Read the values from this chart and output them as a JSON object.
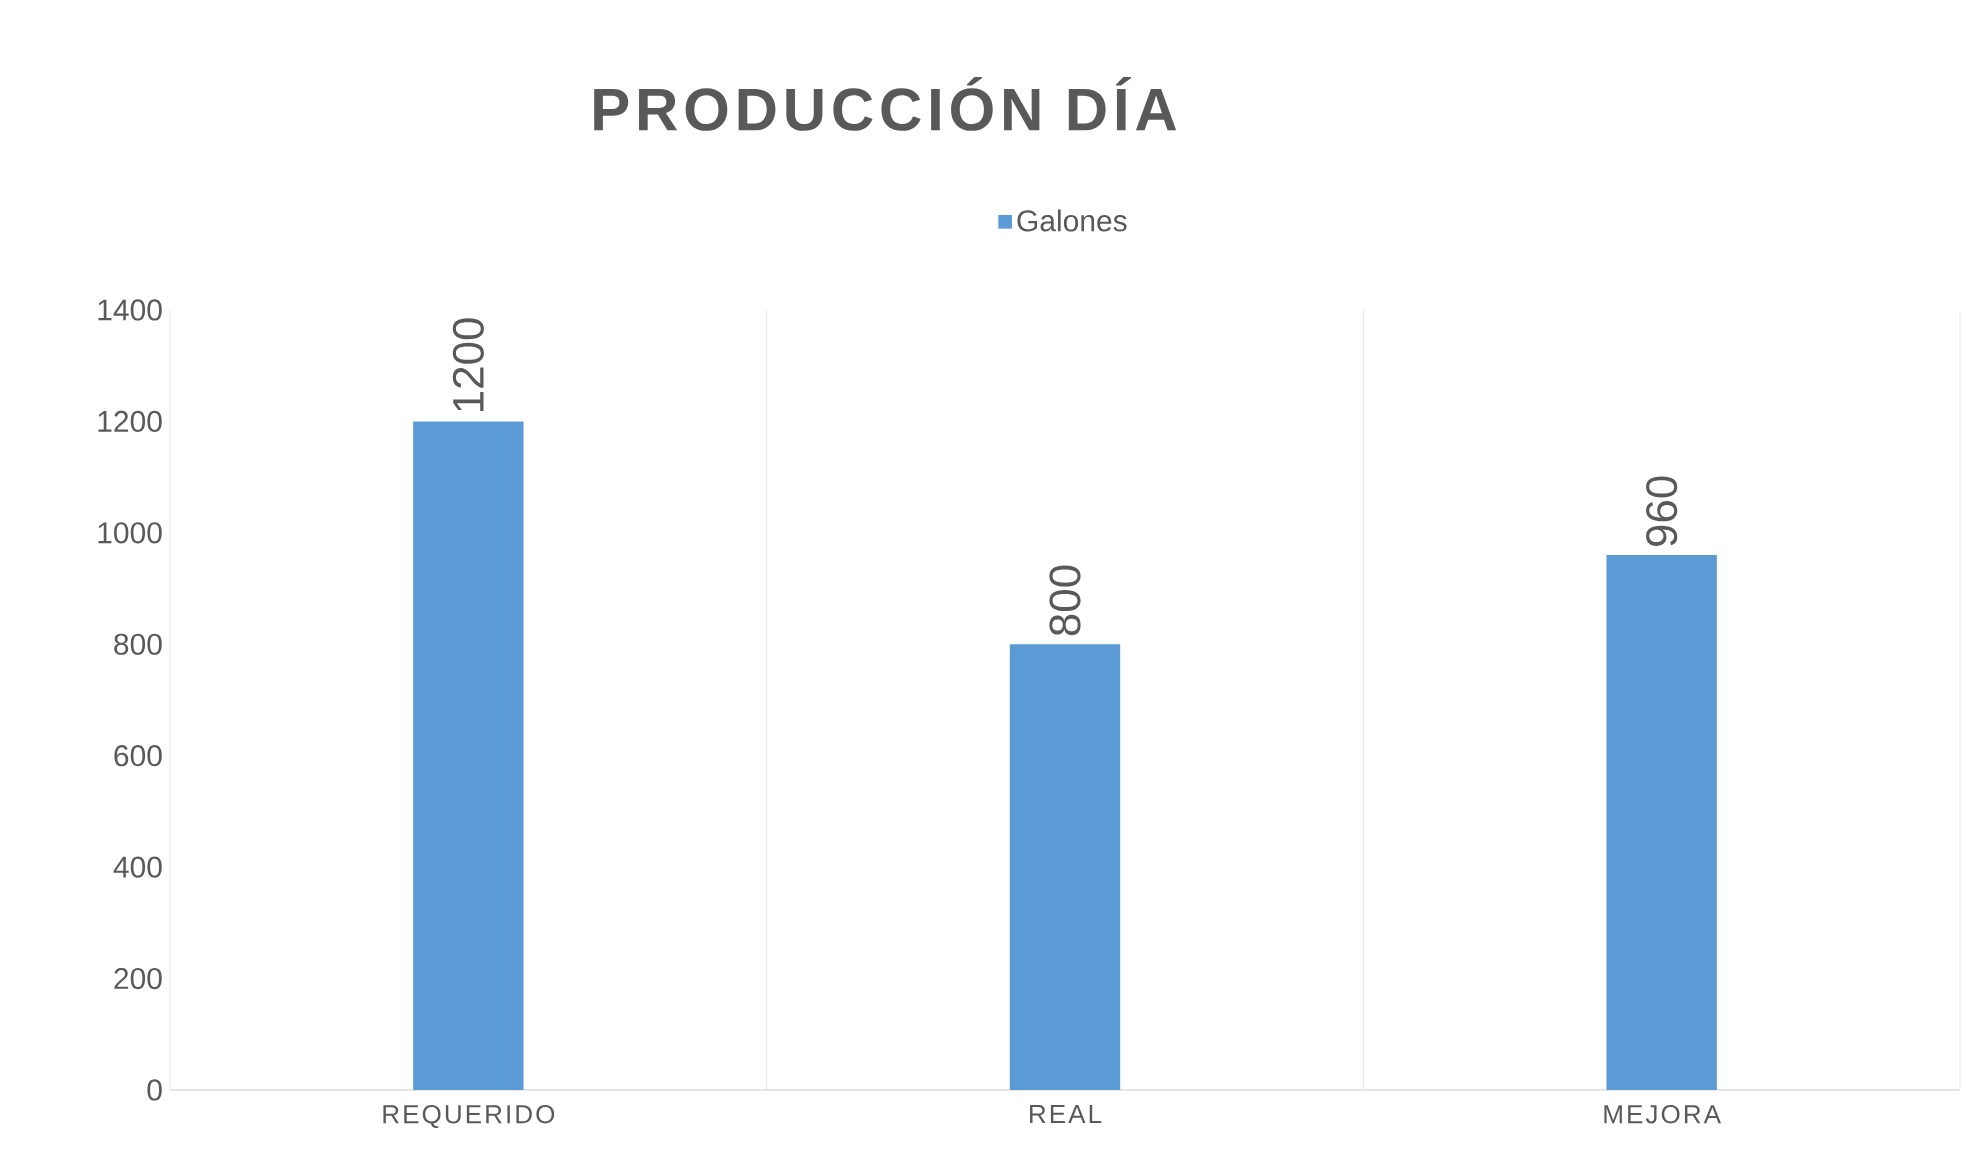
{
  "chart_data": {
    "type": "bar",
    "title": "PRODUCCIÓN  DÍA",
    "categories": [
      "REQUERIDO",
      "REAL",
      "MEJORA"
    ],
    "series": [
      {
        "name": "Galones",
        "color": "#5b9bd5",
        "values": [
          1200,
          800,
          960
        ]
      }
    ],
    "ylim": [
      0,
      1400
    ],
    "yticks": [
      0,
      200,
      400,
      600,
      800,
      1000,
      1200,
      1400
    ],
    "data_labels": true,
    "grid": "x",
    "legend": "top"
  }
}
